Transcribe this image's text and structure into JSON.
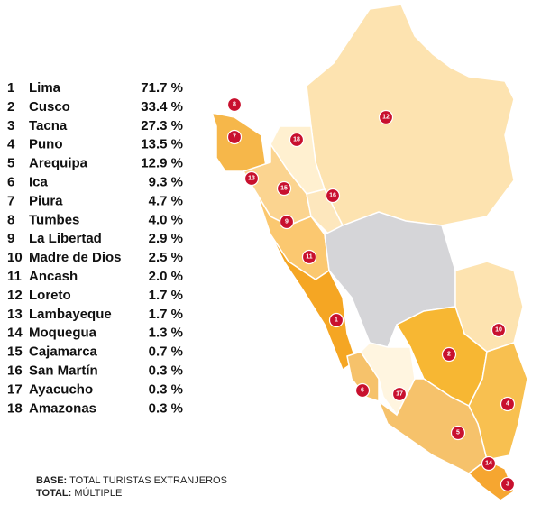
{
  "regions": [
    {
      "rank": 1,
      "name": "Lima",
      "percent": "71.7 %"
    },
    {
      "rank": 2,
      "name": "Cusco",
      "percent": "33.4 %"
    },
    {
      "rank": 3,
      "name": "Tacna",
      "percent": "27.3 %"
    },
    {
      "rank": 4,
      "name": "Puno",
      "percent": "13.5 %"
    },
    {
      "rank": 5,
      "name": "Arequipa",
      "percent": "12.9 %"
    },
    {
      "rank": 6,
      "name": "Ica",
      "percent": "9.3 %"
    },
    {
      "rank": 7,
      "name": "Piura",
      "percent": "4.7 %"
    },
    {
      "rank": 8,
      "name": "Tumbes",
      "percent": "4.0 %"
    },
    {
      "rank": 9,
      "name": "La Libertad",
      "percent": "2.9 %"
    },
    {
      "rank": 10,
      "name": "Madre de Dios",
      "percent": "2.5 %"
    },
    {
      "rank": 11,
      "name": "Ancash",
      "percent": "2.0 %"
    },
    {
      "rank": 12,
      "name": "Loreto",
      "percent": "1.7 %"
    },
    {
      "rank": 13,
      "name": "Lambayeque",
      "percent": "1.7 %"
    },
    {
      "rank": 14,
      "name": "Moquegua",
      "percent": "1.3 %"
    },
    {
      "rank": 15,
      "name": "Cajamarca",
      "percent": "0.7 %"
    },
    {
      "rank": 16,
      "name": "San Martín",
      "percent": "0.3 %"
    },
    {
      "rank": 17,
      "name": "Ayacucho",
      "percent": "0.3 %"
    },
    {
      "rank": 18,
      "name": "Amazonas",
      "percent": "0.3 %"
    }
  ],
  "footer": {
    "base_label": "BASE:",
    "base_text": "TOTAL TURISTAS EXTRANJEROS",
    "total_label": "TOTAL:",
    "total_text": "MÚLTIPLE"
  }
}
